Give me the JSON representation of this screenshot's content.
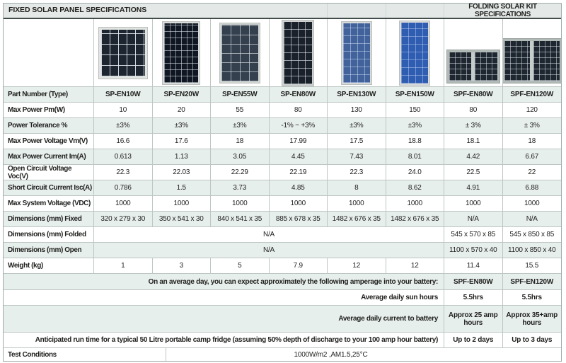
{
  "header": {
    "fixed_title": "FIXED SOLAR PANEL SPECIFICATIONS",
    "folding_title": "FOLDING SOLAR KIT SPECIFICATIONS"
  },
  "panels": [
    {
      "model": "SP-EN10W",
      "kind": "sp10"
    },
    {
      "model": "SP-EN20W",
      "kind": "sp20"
    },
    {
      "model": "SP-EN55W",
      "kind": "sp55"
    },
    {
      "model": "SP-EN80W",
      "kind": "sp80"
    },
    {
      "model": "SP-EN130W",
      "kind": "sp130"
    },
    {
      "model": "SP-EN150W",
      "kind": "sp150"
    },
    {
      "model": "SPF-EN80W",
      "kind": "spf80"
    },
    {
      "model": "SPF-EN120W",
      "kind": "spf120"
    }
  ],
  "spec_rows": [
    {
      "label": "Part Number (Type)",
      "bold": true,
      "green": true,
      "values": [
        "SP-EN10W",
        "SP-EN20W",
        "SP-EN55W",
        "SP-EN80W",
        "SP-EN130W",
        "SP-EN150W",
        "SPF-EN80W",
        "SPF-EN120W"
      ]
    },
    {
      "label": "Max Power Pm(W)",
      "green": false,
      "values": [
        "10",
        "20",
        "55",
        "80",
        "130",
        "150",
        "80",
        "120"
      ]
    },
    {
      "label": "Power Tolerance %",
      "green": true,
      "values": [
        "±3%",
        "±3%",
        "±3%",
        "-1% ~ +3%",
        "±3%",
        "±3%",
        "± 3%",
        "± 3%"
      ]
    },
    {
      "label": "Max Power Voltage Vm(V)",
      "green": false,
      "values": [
        "16.6",
        "17.6",
        "18",
        "17.99",
        "17.5",
        "18.8",
        "18.1",
        "18"
      ]
    },
    {
      "label": "Max Power Current Im(A)",
      "green": true,
      "values": [
        "0.613",
        "1.13",
        "3.05",
        "4.45",
        "7.43",
        "8.01",
        "4.42",
        "6.67"
      ]
    },
    {
      "label": "Open Circuit Voltage Voc(V)",
      "green": false,
      "values": [
        "22.3",
        "22.03",
        "22.29",
        "22.19",
        "22.3",
        "24.0",
        "22.5",
        "22"
      ]
    },
    {
      "label": "Short Circuit Current Isc(A)",
      "green": true,
      "values": [
        "0.786",
        "1.5",
        "3.73",
        "4.85",
        "8",
        "8.62",
        "4.91",
        "6.88"
      ]
    },
    {
      "label": "Max System Voltage (VDC)",
      "green": false,
      "values": [
        "1000",
        "1000",
        "1000",
        "1000",
        "1000",
        "1000",
        "1000",
        "1000"
      ]
    },
    {
      "label": "Dimensions (mm) Fixed",
      "green": true,
      "values": [
        "320 x 279 x 30",
        "350 x 541 x 30",
        "840 x 541 x 35",
        "885 x 678 x 35",
        "1482 x 676 x 35",
        "1482 x 676 x 35",
        "N/A",
        "N/A"
      ]
    },
    {
      "label": "Dimensions (mm) Folded",
      "green": false,
      "span_na": "N/A",
      "values": [
        "545 x 570 x 85",
        "545 x 850 x 85"
      ]
    },
    {
      "label": "Dimensions (mm) Open",
      "green": true,
      "span_na": "N/A",
      "values": [
        "1100 x 570 x 40",
        "1100 x 850 x 40"
      ]
    },
    {
      "label": "Weight (kg)",
      "green": false,
      "values": [
        "1",
        "3",
        "5",
        "7.9",
        "12",
        "12",
        "11.4",
        "15.5"
      ]
    }
  ],
  "bottom_rows": [
    {
      "label": "On an average day, you can expect approximately the following amperage into your battery:",
      "green": true,
      "tall": false,
      "values": [
        "SPF-EN80W",
        "SPF-EN120W"
      ]
    },
    {
      "label": "Average daily sun hours",
      "green": false,
      "tall": false,
      "values": [
        "5.5hrs",
        "5.5hrs"
      ]
    },
    {
      "label": "Average daily current to battery",
      "green": true,
      "tall": true,
      "values": [
        "Approx 25 amp hours",
        "Approx 35+amp hours"
      ]
    },
    {
      "label": "Anticipated run time for a typical 50 Litre portable camp fridge (assuming 50% depth of discharge to your 100 amp hour battery)",
      "green": false,
      "tall": false,
      "values": [
        "Up to 2 days",
        "Up to 3 days"
      ]
    }
  ],
  "test_conditions": {
    "label": "Test Conditions",
    "value": "1000W/m2 ,AM1.5,25°C"
  },
  "colors": {
    "stripe_green": "#e7efec",
    "title_bar": "#e4e9e7",
    "border": "#bcc6c3",
    "title_underline": "#414c4a",
    "text": "#1f1f1d"
  }
}
